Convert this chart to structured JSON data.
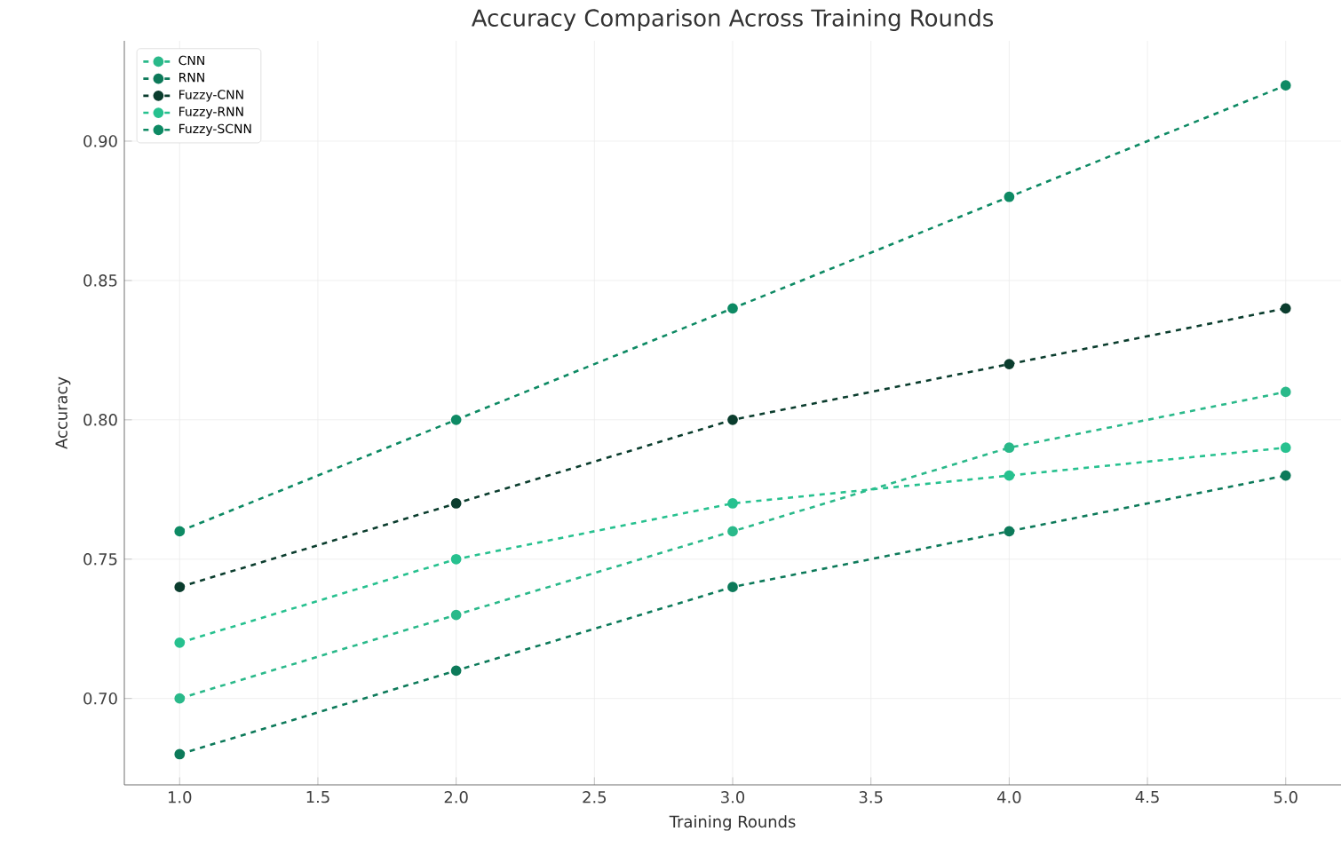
{
  "chart_data": {
    "type": "line",
    "title": "Accuracy Comparison Across Training Rounds",
    "xlabel": "Training Rounds",
    "ylabel": "Accuracy",
    "x": [
      1,
      2,
      3,
      4,
      5
    ],
    "series": [
      {
        "name": "CNN",
        "color": "#2ab98a",
        "values": [
          0.7,
          0.73,
          0.76,
          0.79,
          0.81
        ]
      },
      {
        "name": "RNN",
        "color": "#0d7a5a",
        "values": [
          0.68,
          0.71,
          0.74,
          0.76,
          0.78
        ]
      },
      {
        "name": "Fuzzy-CNN",
        "color": "#0b3d2e",
        "values": [
          0.74,
          0.77,
          0.8,
          0.82,
          0.84
        ]
      },
      {
        "name": "Fuzzy-RNN",
        "color": "#27c18f",
        "values": [
          0.72,
          0.75,
          0.77,
          0.78,
          0.79
        ]
      },
      {
        "name": "Fuzzy-SCNN",
        "color": "#0e8a64",
        "values": [
          0.76,
          0.8,
          0.84,
          0.88,
          0.92
        ]
      }
    ],
    "xlim": [
      0.8,
      5.2
    ],
    "ylim": [
      0.669,
      0.936
    ],
    "xticks": [
      {
        "value": 1,
        "label": "1.0"
      },
      {
        "value": 1.5,
        "label": "1.5"
      },
      {
        "value": 2,
        "label": "2.0"
      },
      {
        "value": 2.5,
        "label": "2.5"
      },
      {
        "value": 3,
        "label": "3.0"
      },
      {
        "value": 3.5,
        "label": "3.5"
      },
      {
        "value": 4,
        "label": "4.0"
      },
      {
        "value": 4.5,
        "label": "4.5"
      },
      {
        "value": 5,
        "label": "5.0"
      }
    ],
    "yticks": [
      {
        "value": 0.7,
        "label": "0.70"
      },
      {
        "value": 0.75,
        "label": "0.75"
      },
      {
        "value": 0.8,
        "label": "0.80"
      },
      {
        "value": 0.85,
        "label": "0.85"
      },
      {
        "value": 0.9,
        "label": "0.90"
      }
    ],
    "grid": true,
    "legend": "top left",
    "marker": "circle",
    "line_style": "dashed"
  }
}
